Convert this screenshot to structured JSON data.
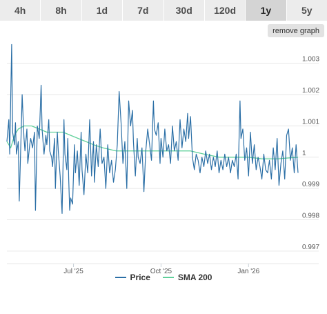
{
  "tabs": [
    {
      "label": "4h",
      "active": false
    },
    {
      "label": "8h",
      "active": false
    },
    {
      "label": "1d",
      "active": false
    },
    {
      "label": "7d",
      "active": false
    },
    {
      "label": "30d",
      "active": false
    },
    {
      "label": "120d",
      "active": false
    },
    {
      "label": "1y",
      "active": true
    },
    {
      "label": "5y",
      "active": false
    }
  ],
  "remove_graph_label": "remove graph",
  "colors": {
    "price": "#2b6fa6",
    "sma": "#5fd09a"
  },
  "chart_data": {
    "type": "line",
    "x_start": "2025-04-22",
    "x_end": "2026-02-22",
    "x_ticks": [
      {
        "date": "2025-07-01",
        "label": "Jul '25"
      },
      {
        "date": "2025-10-01",
        "label": "Oct '25"
      },
      {
        "date": "2026-01-01",
        "label": "Jan '26"
      }
    ],
    "y_ticks": [
      {
        "value": 0.997,
        "label": "0.997"
      },
      {
        "value": 0.998,
        "label": "0.998"
      },
      {
        "value": 0.999,
        "label": "0.999"
      },
      {
        "value": 1.0,
        "label": "1"
      },
      {
        "value": 1.001,
        "label": "1.001"
      },
      {
        "value": 1.002,
        "label": "1.002"
      },
      {
        "value": 1.003,
        "label": "1.003"
      }
    ],
    "ylim": [
      0.9966,
      1.0037
    ],
    "grid": true,
    "legend_position": "bottom",
    "series": [
      {
        "name": "Price",
        "points": [
          [
            "2025-04-22",
            1.0005
          ],
          [
            "2025-04-24",
            1.0012
          ],
          [
            "2025-04-25",
            1.0001
          ],
          [
            "2025-04-27",
            1.0036
          ],
          [
            "2025-04-28",
            1.0008
          ],
          [
            "2025-04-30",
            1.0004
          ],
          [
            "2025-05-01",
            1.0011
          ],
          [
            "2025-05-02",
            1.0001
          ],
          [
            "2025-05-04",
            1.0005
          ],
          [
            "2025-05-05",
            0.9986
          ],
          [
            "2025-05-07",
            1.0008
          ],
          [
            "2025-05-08",
            1.002
          ],
          [
            "2025-05-10",
            1.0006
          ],
          [
            "2025-05-11",
            1.0002
          ],
          [
            "2025-05-13",
            1.0009
          ],
          [
            "2025-05-14",
            0.9998
          ],
          [
            "2025-05-16",
            1.0004
          ],
          [
            "2025-05-17",
            1.0006
          ],
          [
            "2025-05-19",
            1.0003
          ],
          [
            "2025-05-21",
            1.0008
          ],
          [
            "2025-05-22",
            0.9983
          ],
          [
            "2025-05-24",
            1.001
          ],
          [
            "2025-05-26",
            1.0006
          ],
          [
            "2025-05-28",
            1.0023
          ],
          [
            "2025-05-29",
            1.0009
          ],
          [
            "2025-05-31",
            1.0001
          ],
          [
            "2025-06-02",
            1.0007
          ],
          [
            "2025-06-03",
            1.0004
          ],
          [
            "2025-06-05",
            1.0012
          ],
          [
            "2025-06-06",
            1.0002
          ],
          [
            "2025-06-08",
            1.0
          ],
          [
            "2025-06-09",
            0.9997
          ],
          [
            "2025-06-11",
            1.0006
          ],
          [
            "2025-06-12",
            0.999
          ],
          [
            "2025-06-14",
            1.0008
          ],
          [
            "2025-06-15",
            1.0002
          ],
          [
            "2025-06-17",
            0.9994
          ],
          [
            "2025-06-19",
            0.9982
          ],
          [
            "2025-06-21",
            1.0012
          ],
          [
            "2025-06-22",
            1.0001
          ],
          [
            "2025-06-24",
            0.9996
          ],
          [
            "2025-06-25",
            1.0006
          ],
          [
            "2025-06-26",
            0.9993
          ],
          [
            "2025-06-27",
            0.9983
          ],
          [
            "2025-06-28",
            0.9987
          ],
          [
            "2025-06-30",
            0.9985
          ],
          [
            "2025-07-02",
            1.0004
          ],
          [
            "2025-07-03",
            0.9995
          ],
          [
            "2025-07-05",
            1.0002
          ],
          [
            "2025-07-07",
            0.9991
          ],
          [
            "2025-07-09",
            1.0008
          ],
          [
            "2025-07-10",
            0.9996
          ],
          [
            "2025-07-12",
            0.9988
          ],
          [
            "2025-07-14",
            1.0001
          ],
          [
            "2025-07-16",
            0.9995
          ],
          [
            "2025-07-18",
            1.0012
          ],
          [
            "2025-07-20",
            0.9994
          ],
          [
            "2025-07-22",
            1.0005
          ],
          [
            "2025-07-23",
            0.9992
          ],
          [
            "2025-07-25",
            1.0004
          ],
          [
            "2025-07-27",
            0.9997
          ],
          [
            "2025-07-29",
            1.0009
          ],
          [
            "2025-07-31",
            0.9998
          ],
          [
            "2025-08-02",
            1.0
          ],
          [
            "2025-08-04",
            0.999
          ],
          [
            "2025-08-06",
            1.0004
          ],
          [
            "2025-08-08",
            0.9995
          ],
          [
            "2025-08-10",
            0.9999
          ],
          [
            "2025-08-12",
            0.9992
          ],
          [
            "2025-08-14",
            0.9996
          ],
          [
            "2025-08-16",
            1.0004
          ],
          [
            "2025-08-18",
            1.0021
          ],
          [
            "2025-08-20",
            1.0011
          ],
          [
            "2025-08-22",
            0.9998
          ],
          [
            "2025-08-24",
            1.0005
          ],
          [
            "2025-08-26",
            0.999
          ],
          [
            "2025-08-28",
            1.0018
          ],
          [
            "2025-08-30",
            1.001
          ],
          [
            "2025-09-01",
            1.0015
          ],
          [
            "2025-09-02",
            1.0005
          ],
          [
            "2025-09-04",
            0.9994
          ],
          [
            "2025-09-06",
            1.0006
          ],
          [
            "2025-09-07",
            1.0
          ],
          [
            "2025-09-09",
            0.9998
          ],
          [
            "2025-09-11",
            1.0003
          ],
          [
            "2025-09-13",
            0.9989
          ],
          [
            "2025-09-15",
            1.0002
          ],
          [
            "2025-09-17",
            1.0009
          ],
          [
            "2025-09-19",
            1.0004
          ],
          [
            "2025-09-21",
            0.9999
          ],
          [
            "2025-09-23",
            1.0018
          ],
          [
            "2025-09-24",
            1.0009
          ],
          [
            "2025-09-26",
            1.0007
          ],
          [
            "2025-09-28",
            1.0011
          ],
          [
            "2025-09-30",
            0.9998
          ],
          [
            "2025-10-01",
            1.0006
          ],
          [
            "2025-10-03",
            1.0
          ],
          [
            "2025-10-05",
            1.0009
          ],
          [
            "2025-10-07",
            1.0002
          ],
          [
            "2025-10-09",
            1.0004
          ],
          [
            "2025-10-11",
            0.9998
          ],
          [
            "2025-10-13",
            1.001
          ],
          [
            "2025-10-15",
            1.0002
          ],
          [
            "2025-10-17",
            1.0005
          ],
          [
            "2025-10-19",
            0.9999
          ],
          [
            "2025-10-21",
            1.0012
          ],
          [
            "2025-10-23",
            1.0003
          ],
          [
            "2025-10-25",
            1.0009
          ],
          [
            "2025-10-27",
            1.0005
          ],
          [
            "2025-10-29",
            1.0014
          ],
          [
            "2025-10-30",
            1.0006
          ],
          [
            "2025-11-01",
            1.0013
          ],
          [
            "2025-11-03",
            1.0
          ],
          [
            "2025-11-05",
            0.9996
          ],
          [
            "2025-11-07",
            1.0001
          ],
          [
            "2025-11-09",
            0.9999
          ],
          [
            "2025-11-11",
            0.9995
          ],
          [
            "2025-11-13",
            1.0
          ],
          [
            "2025-11-15",
            0.9997
          ],
          [
            "2025-11-17",
            1.0002
          ],
          [
            "2025-11-19",
            0.9998
          ],
          [
            "2025-11-21",
            1.0001
          ],
          [
            "2025-11-23",
            0.9996
          ],
          [
            "2025-11-25",
            1.0
          ],
          [
            "2025-11-27",
            0.9997
          ],
          [
            "2025-11-29",
            1.0002
          ],
          [
            "2025-12-01",
            0.9995
          ],
          [
            "2025-12-03",
            0.9999
          ],
          [
            "2025-12-05",
            0.9996
          ],
          [
            "2025-12-07",
            1.0001
          ],
          [
            "2025-12-09",
            0.9997
          ],
          [
            "2025-12-11",
            1.0
          ],
          [
            "2025-12-13",
            0.9995
          ],
          [
            "2025-12-15",
            0.9999
          ],
          [
            "2025-12-17",
            0.9997
          ],
          [
            "2025-12-19",
            1.0001
          ],
          [
            "2025-12-21",
            0.9993
          ],
          [
            "2025-12-23",
            1.0018
          ],
          [
            "2025-12-24",
            1.0006
          ],
          [
            "2025-12-26",
            1.0009
          ],
          [
            "2025-12-28",
            0.9999
          ],
          [
            "2025-12-30",
            1.0003
          ],
          [
            "2026-01-01",
            0.9994
          ],
          [
            "2026-01-03",
            1.0008
          ],
          [
            "2026-01-05",
            0.9998
          ],
          [
            "2026-01-07",
            1.0004
          ],
          [
            "2026-01-09",
            0.9996
          ],
          [
            "2026-01-11",
            1.0
          ],
          [
            "2026-01-13",
            0.9997
          ],
          [
            "2026-01-15",
            0.9993
          ],
          [
            "2026-01-17",
            1.0001
          ],
          [
            "2026-01-19",
            0.9996
          ],
          [
            "2026-01-21",
            0.9995
          ],
          [
            "2026-01-23",
            0.9999
          ],
          [
            "2026-01-25",
            0.9993
          ],
          [
            "2026-01-27",
            1.0003
          ],
          [
            "2026-01-29",
            0.9996
          ],
          [
            "2026-01-31",
            1.0006
          ],
          [
            "2026-02-02",
            0.9991
          ],
          [
            "2026-02-04",
            0.9998
          ],
          [
            "2026-02-06",
            1.0002
          ],
          [
            "2026-02-08",
            0.9993
          ],
          [
            "2026-02-10",
            1.0007
          ],
          [
            "2026-02-12",
            1.0009
          ],
          [
            "2026-02-14",
            0.9999
          ],
          [
            "2026-02-16",
            1.0003
          ],
          [
            "2026-02-18",
            0.9995
          ],
          [
            "2026-02-20",
            1.0004
          ],
          [
            "2026-02-22",
            0.9995
          ]
        ]
      },
      {
        "name": "SMA 200",
        "points": [
          [
            "2025-04-22",
            1.0005
          ],
          [
            "2025-04-26",
            1.0003
          ],
          [
            "2025-04-30",
            1.0007
          ],
          [
            "2025-05-04",
            1.0009
          ],
          [
            "2025-05-10",
            1.001
          ],
          [
            "2025-05-18",
            1.001
          ],
          [
            "2025-05-26",
            1.0009
          ],
          [
            "2025-06-03",
            1.0008
          ],
          [
            "2025-06-12",
            1.0008
          ],
          [
            "2025-06-20",
            1.0008
          ],
          [
            "2025-06-28",
            1.0007
          ],
          [
            "2025-07-06",
            1.0006
          ],
          [
            "2025-07-14",
            1.0005
          ],
          [
            "2025-07-22",
            1.0004
          ],
          [
            "2025-08-01",
            1.0003
          ],
          [
            "2025-08-15",
            1.0002
          ],
          [
            "2025-09-01",
            1.0002
          ],
          [
            "2025-09-15",
            1.0002
          ],
          [
            "2025-10-01",
            1.0002
          ],
          [
            "2025-10-15",
            1.0002
          ],
          [
            "2025-11-01",
            1.0002
          ],
          [
            "2025-11-15",
            1.0001
          ],
          [
            "2025-12-01",
            1.0
          ],
          [
            "2025-12-15",
            1.0
          ],
          [
            "2026-01-01",
            1.0
          ],
          [
            "2026-01-15",
            0.99995
          ],
          [
            "2026-02-01",
            0.99995
          ],
          [
            "2026-02-22",
            1.0
          ]
        ]
      }
    ]
  }
}
